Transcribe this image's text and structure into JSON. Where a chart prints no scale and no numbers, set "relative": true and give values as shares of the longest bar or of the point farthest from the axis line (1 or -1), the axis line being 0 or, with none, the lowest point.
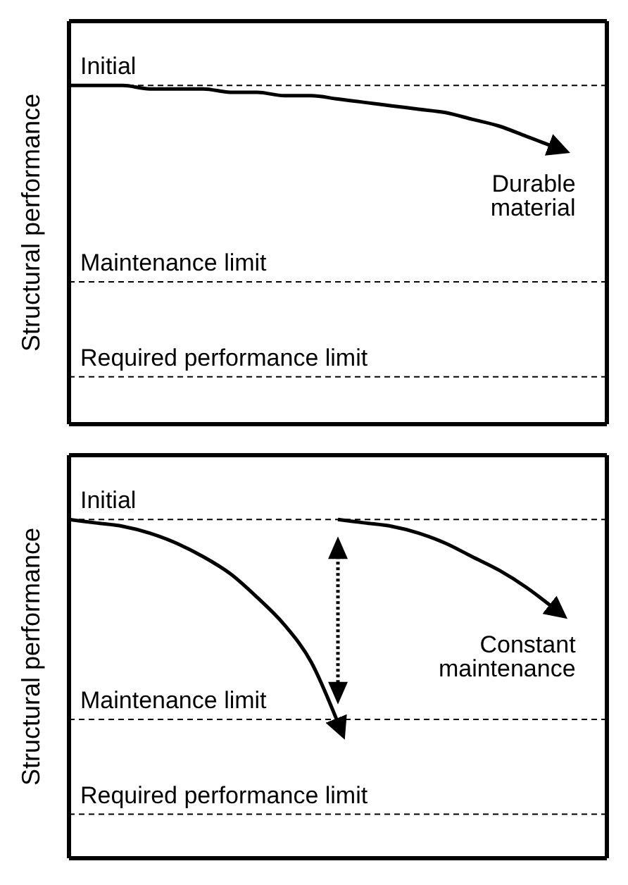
{
  "chart_data": [
    {
      "type": "line",
      "relative": true,
      "ylabel": "Structural performance",
      "categories": [
        null,
        null,
        null,
        null,
        null,
        null,
        null,
        null,
        null,
        null,
        null,
        null,
        null,
        null,
        null,
        null,
        null,
        null,
        null,
        null,
        null
      ],
      "series": [
        {
          "name": "Durable material",
          "color": "#000000",
          "values": [
            1,
            1,
            1,
            0.99,
            0.99,
            0.99,
            0.98,
            0.98,
            0.97,
            0.97,
            0.96,
            0.95,
            0.94,
            0.93,
            0.92,
            0.9,
            0.88,
            0.85,
            0.82,
            null,
            null
          ]
        }
      ],
      "ref_lines": [
        {
          "axis": "y",
          "value": 1,
          "label": "Initial",
          "color": "#000000",
          "line_style": "dashed"
        },
        {
          "axis": "y",
          "value": 0.42,
          "label": "Maintenance limit",
          "color": "#000000",
          "line_style": "dashed"
        },
        {
          "axis": "y",
          "value": 0.14,
          "label": "Required performance limit",
          "color": "#000000",
          "line_style": "dashed"
        }
      ]
    },
    {
      "type": "line",
      "relative": true,
      "ylabel": "Structural performance",
      "categories": [
        null,
        null,
        null,
        null,
        null,
        null,
        null,
        null,
        null,
        null,
        null,
        null,
        null,
        null,
        null,
        null,
        null,
        null,
        null,
        null,
        null
      ],
      "series": [
        {
          "color": "#000000",
          "values": [
            1,
            0.99,
            0.98,
            0.96,
            0.93,
            0.89,
            0.84,
            0.77,
            0.69,
            0.58,
            0.4,
            null,
            null,
            null,
            null,
            null,
            null,
            null,
            null,
            null,
            null
          ]
        },
        {
          "name": "Constant maintenance",
          "color": "#000000",
          "values": [
            null,
            null,
            null,
            null,
            null,
            null,
            null,
            null,
            null,
            null,
            1,
            0.99,
            0.98,
            0.96,
            0.93,
            0.89,
            0.85,
            0.8,
            0.74,
            null,
            null
          ]
        }
      ],
      "ref_lines": [
        {
          "axis": "y",
          "value": 1,
          "label": "Initial",
          "color": "#000000",
          "line_style": "dashed"
        },
        {
          "axis": "y",
          "value": 0.41,
          "label": "Maintenance limit",
          "color": "#000000",
          "line_style": "dashed"
        },
        {
          "axis": "y",
          "value": 0.13,
          "label": "Required performance limit",
          "color": "#000000",
          "line_style": "dashed"
        }
      ]
    }
  ]
}
